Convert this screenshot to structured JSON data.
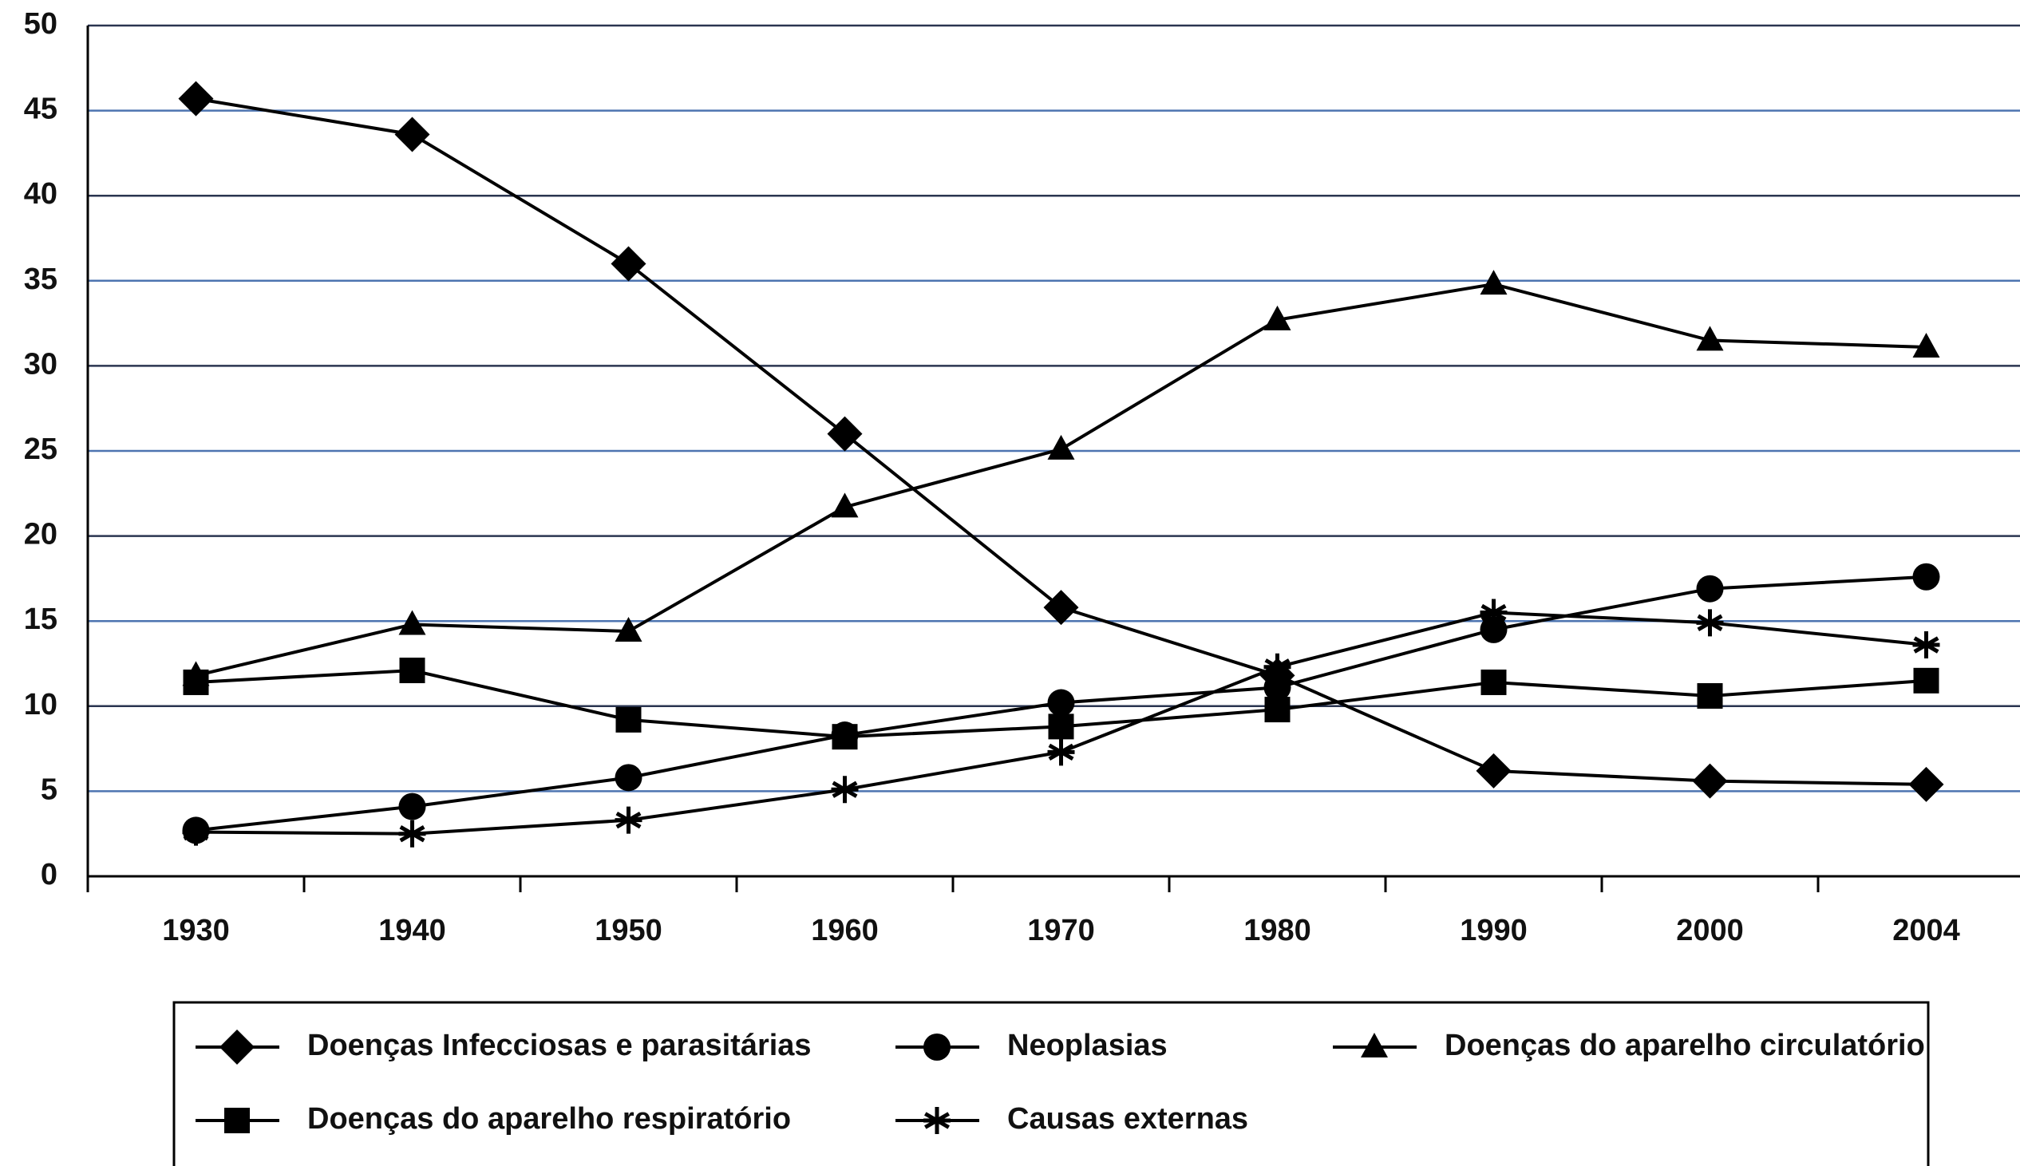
{
  "chart_data": {
    "type": "line",
    "categories": [
      "1930",
      "1940",
      "1950",
      "1960",
      "1970",
      "1980",
      "1990",
      "2000",
      "2004"
    ],
    "ylim": [
      0,
      50
    ],
    "yticks": [
      0,
      5,
      10,
      15,
      20,
      25,
      30,
      35,
      40,
      45,
      50
    ],
    "grid": true,
    "legend": "bottom",
    "series": [
      {
        "name": "Doenças Infecciosas e parasitárias",
        "color": "#000000",
        "marker": "diamond",
        "values": [
          45.7,
          43.6,
          36,
          26,
          15.8,
          11.8,
          6.2,
          5.6,
          5.4
        ]
      },
      {
        "name": "Neoplasias",
        "color": "#000000",
        "marker": "circle",
        "values": [
          2.7,
          4.1,
          5.8,
          8.3,
          10.2,
          11.1,
          14.5,
          16.9,
          17.6
        ]
      },
      {
        "name": "Doenças do aparelho circulatório",
        "color": "#000000",
        "marker": "triangle",
        "values": [
          11.8,
          14.8,
          14.4,
          21.7,
          25.1,
          32.7,
          34.8,
          31.5,
          31.1
        ]
      },
      {
        "name": "Doenças do aparelho respiratório",
        "color": "#000000",
        "marker": "square",
        "values": [
          11.4,
          12.1,
          9.2,
          8.2,
          8.8,
          9.8,
          11.4,
          10.6,
          11.5
        ]
      },
      {
        "name": "Causas externas",
        "color": "#000000",
        "marker": "asterisk",
        "values": [
          2.6,
          2.5,
          3.3,
          5.1,
          7.3,
          12.3,
          15.5,
          14.9,
          13.6
        ]
      }
    ]
  }
}
